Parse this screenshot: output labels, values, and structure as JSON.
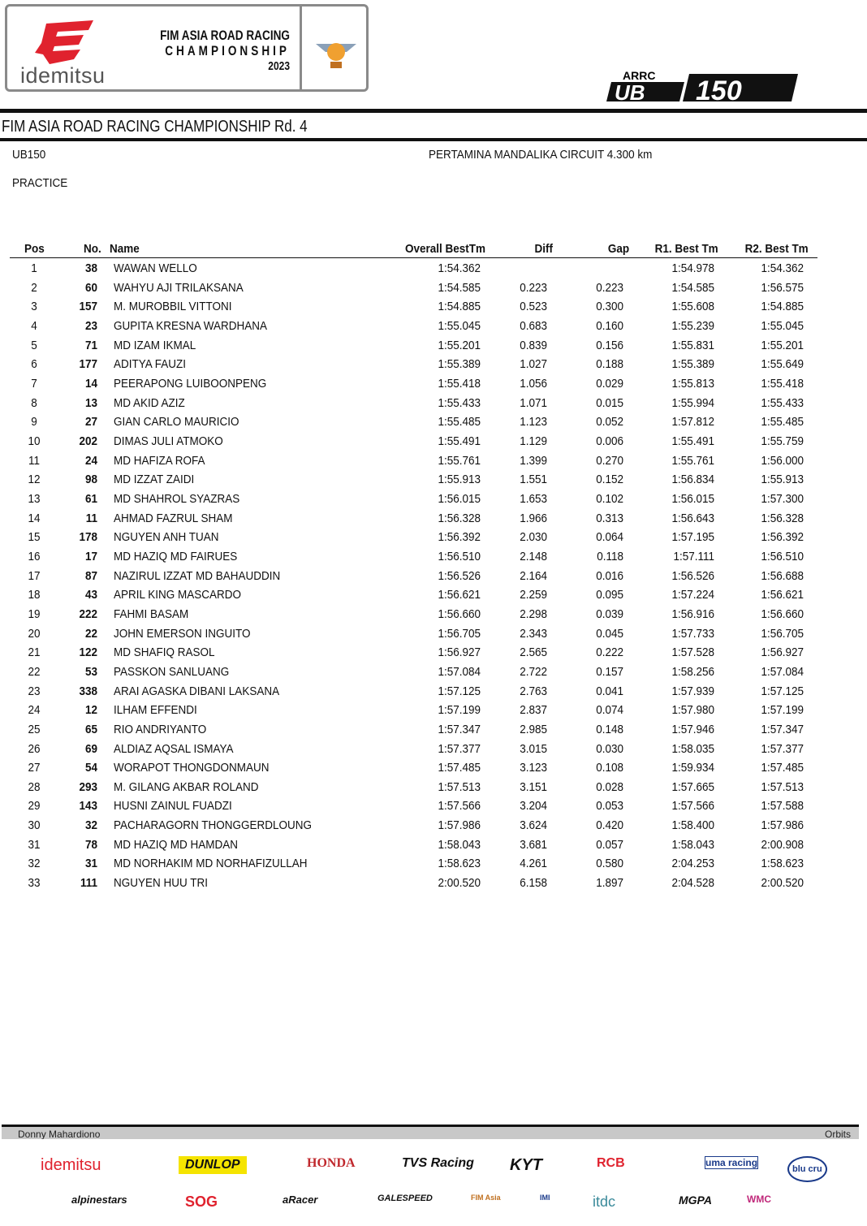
{
  "header": {
    "sponsor_logo_text": "idemitsu",
    "championship_line1": "FIM ASIA ROAD RACING",
    "championship_line2": "CHAMPIONSHIP",
    "championship_year": "2023",
    "class_logo_top": "ARRC",
    "class_logo_main": "UB 150"
  },
  "event_title": "FIM ASIA ROAD RACING CHAMPIONSHIP Rd. 4",
  "class": "UB150",
  "circuit": "PERTAMINA MANDALIKA CIRCUIT 4.300 km",
  "session": "PRACTICE",
  "table": {
    "columns": [
      "Pos",
      "No.",
      "Name",
      "Overall BestTm",
      "Diff",
      "Gap",
      "R1. Best Tm",
      "R2. Best Tm"
    ],
    "rows": [
      [
        "1",
        "38",
        "WAWAN WELLO",
        "1:54.362",
        "",
        "",
        "1:54.978",
        "1:54.362"
      ],
      [
        "2",
        "60",
        "WAHYU AJI TRILAKSANA",
        "1:54.585",
        "0.223",
        "0.223",
        "1:54.585",
        "1:56.575"
      ],
      [
        "3",
        "157",
        "M. MUROBBIL VITTONI",
        "1:54.885",
        "0.523",
        "0.300",
        "1:55.608",
        "1:54.885"
      ],
      [
        "4",
        "23",
        "GUPITA KRESNA WARDHANA",
        "1:55.045",
        "0.683",
        "0.160",
        "1:55.239",
        "1:55.045"
      ],
      [
        "5",
        "71",
        "MD IZAM IKMAL",
        "1:55.201",
        "0.839",
        "0.156",
        "1:55.831",
        "1:55.201"
      ],
      [
        "6",
        "177",
        "ADITYA FAUZI",
        "1:55.389",
        "1.027",
        "0.188",
        "1:55.389",
        "1:55.649"
      ],
      [
        "7",
        "14",
        "PEERAPONG LUIBOONPENG",
        "1:55.418",
        "1.056",
        "0.029",
        "1:55.813",
        "1:55.418"
      ],
      [
        "8",
        "13",
        "MD AKID AZIZ",
        "1:55.433",
        "1.071",
        "0.015",
        "1:55.994",
        "1:55.433"
      ],
      [
        "9",
        "27",
        "GIAN CARLO MAURICIO",
        "1:55.485",
        "1.123",
        "0.052",
        "1:57.812",
        "1:55.485"
      ],
      [
        "10",
        "202",
        "DIMAS JULI ATMOKO",
        "1:55.491",
        "1.129",
        "0.006",
        "1:55.491",
        "1:55.759"
      ],
      [
        "11",
        "24",
        "MD HAFIZA ROFA",
        "1:55.761",
        "1.399",
        "0.270",
        "1:55.761",
        "1:56.000"
      ],
      [
        "12",
        "98",
        "MD IZZAT ZAIDI",
        "1:55.913",
        "1.551",
        "0.152",
        "1:56.834",
        "1:55.913"
      ],
      [
        "13",
        "61",
        "MD SHAHROL SYAZRAS",
        "1:56.015",
        "1.653",
        "0.102",
        "1:56.015",
        "1:57.300"
      ],
      [
        "14",
        "11",
        "AHMAD FAZRUL SHAM",
        "1:56.328",
        "1.966",
        "0.313",
        "1:56.643",
        "1:56.328"
      ],
      [
        "15",
        "178",
        "NGUYEN ANH TUAN",
        "1:56.392",
        "2.030",
        "0.064",
        "1:57.195",
        "1:56.392"
      ],
      [
        "16",
        "17",
        "MD HAZIQ MD FAIRUES",
        "1:56.510",
        "2.148",
        "0.118",
        "1:57.111",
        "1:56.510"
      ],
      [
        "17",
        "87",
        "NAZIRUL IZZAT MD BAHAUDDIN",
        "1:56.526",
        "2.164",
        "0.016",
        "1:56.526",
        "1:56.688"
      ],
      [
        "18",
        "43",
        "APRIL KING MASCARDO",
        "1:56.621",
        "2.259",
        "0.095",
        "1:57.224",
        "1:56.621"
      ],
      [
        "19",
        "222",
        "FAHMI BASAM",
        "1:56.660",
        "2.298",
        "0.039",
        "1:56.916",
        "1:56.660"
      ],
      [
        "20",
        "22",
        "JOHN EMERSON INGUITO",
        "1:56.705",
        "2.343",
        "0.045",
        "1:57.733",
        "1:56.705"
      ],
      [
        "21",
        "122",
        "MD SHAFIQ RASOL",
        "1:56.927",
        "2.565",
        "0.222",
        "1:57.528",
        "1:56.927"
      ],
      [
        "22",
        "53",
        "PASSKON SANLUANG",
        "1:57.084",
        "2.722",
        "0.157",
        "1:58.256",
        "1:57.084"
      ],
      [
        "23",
        "338",
        "ARAI AGASKA DIBANI LAKSANA",
        "1:57.125",
        "2.763",
        "0.041",
        "1:57.939",
        "1:57.125"
      ],
      [
        "24",
        "12",
        "ILHAM EFFENDI",
        "1:57.199",
        "2.837",
        "0.074",
        "1:57.980",
        "1:57.199"
      ],
      [
        "25",
        "65",
        "RIO ANDRIYANTO",
        "1:57.347",
        "2.985",
        "0.148",
        "1:57.946",
        "1:57.347"
      ],
      [
        "26",
        "69",
        "ALDIAZ AQSAL ISMAYA",
        "1:57.377",
        "3.015",
        "0.030",
        "1:58.035",
        "1:57.377"
      ],
      [
        "27",
        "54",
        "WORAPOT THONGDONMAUN",
        "1:57.485",
        "3.123",
        "0.108",
        "1:59.934",
        "1:57.485"
      ],
      [
        "28",
        "293",
        "M. GILANG AKBAR ROLAND",
        "1:57.513",
        "3.151",
        "0.028",
        "1:57.665",
        "1:57.513"
      ],
      [
        "29",
        "143",
        "HUSNI ZAINUL FUADZI",
        "1:57.566",
        "3.204",
        "0.053",
        "1:57.566",
        "1:57.588"
      ],
      [
        "30",
        "32",
        "PACHARAGORN THONGGERDLOUNG",
        "1:57.986",
        "3.624",
        "0.420",
        "1:58.400",
        "1:57.986"
      ],
      [
        "31",
        "78",
        "MD HAZIQ MD HAMDAN",
        "1:58.043",
        "3.681",
        "0.057",
        "1:58.043",
        "2:00.908"
      ],
      [
        "32",
        "31",
        "MD NORHAKIM MD NORHAFIZULLAH",
        "1:58.623",
        "4.261",
        "0.580",
        "2:04.253",
        "1:58.623"
      ],
      [
        "33",
        "111",
        "NGUYEN HUU TRI",
        "2:00.520",
        "6.158",
        "1.897",
        "2:04.528",
        "2:00.520"
      ]
    ]
  },
  "footer": {
    "left": "Donny Mahardiono",
    "right": "Orbits"
  },
  "sponsors": {
    "row1": [
      "idemitsu",
      "DUNLOP",
      "HONDA",
      "TVS Racing",
      "KYT",
      "RCB",
      "uma racing",
      "blu cru"
    ],
    "row2": [
      "alpinestars",
      "SOG",
      "aRacer",
      "GALESPEED",
      "FIM Asia",
      "IMI",
      "itdc",
      "MGPA",
      "WMC"
    ]
  },
  "colors": {
    "idemitsu_red": "#e0222e",
    "dunlop_yellow": "#f5e400",
    "rule": "#111111"
  }
}
